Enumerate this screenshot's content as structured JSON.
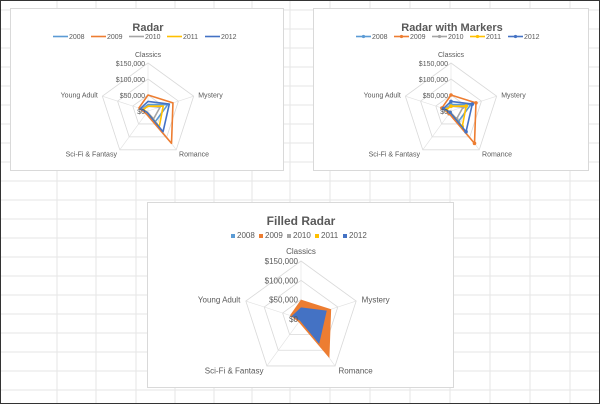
{
  "colors": {
    "2008": "#5b9bd5",
    "2009": "#ed7d31",
    "2010": "#a5a5a5",
    "2011": "#ffc000",
    "2012": "#4472c4"
  },
  "chart_data": [
    {
      "type": "radar",
      "title": "Radar",
      "style": "line",
      "categories": [
        "Classics",
        "Mystery",
        "Romance",
        "Sci-Fi & Fantasy",
        "Young Adult"
      ],
      "tick_labels": [
        "$0",
        "$50,000",
        "$100,000",
        "$150,000"
      ],
      "ylim": [
        0,
        150000
      ],
      "legend": "top",
      "series": [
        {
          "name": "2008",
          "values": [
            20000,
            65000,
            40000,
            10000,
            20000
          ]
        },
        {
          "name": "2009",
          "values": [
            50000,
            82000,
            125000,
            10000,
            30000
          ]
        },
        {
          "name": "2010",
          "values": [
            15000,
            40000,
            30000,
            5000,
            20000
          ]
        },
        {
          "name": "2011",
          "values": [
            15000,
            50000,
            60000,
            5000,
            15000
          ]
        },
        {
          "name": "2012",
          "values": [
            30000,
            70000,
            80000,
            5000,
            25000
          ]
        }
      ]
    },
    {
      "type": "radar",
      "title": "Radar with Markers",
      "style": "markers",
      "categories": [
        "Classics",
        "Mystery",
        "Romance",
        "Sci-Fi & Fantasy",
        "Young Adult"
      ],
      "tick_labels": [
        "$0",
        "$50,000",
        "$100,000",
        "$150,000"
      ],
      "ylim": [
        0,
        150000
      ],
      "legend": "top",
      "series": [
        {
          "name": "2008",
          "values": [
            20000,
            65000,
            40000,
            10000,
            20000
          ]
        },
        {
          "name": "2009",
          "values": [
            50000,
            82000,
            125000,
            10000,
            30000
          ]
        },
        {
          "name": "2010",
          "values": [
            15000,
            40000,
            30000,
            5000,
            20000
          ]
        },
        {
          "name": "2011",
          "values": [
            15000,
            50000,
            60000,
            5000,
            15000
          ]
        },
        {
          "name": "2012",
          "values": [
            30000,
            70000,
            80000,
            5000,
            25000
          ]
        }
      ]
    },
    {
      "type": "radar",
      "title": "Filled Radar",
      "style": "filled",
      "categories": [
        "Classics",
        "Mystery",
        "Romance",
        "Sci-Fi & Fantasy",
        "Young Adult"
      ],
      "tick_labels": [
        "$0",
        "$50,000",
        "$100,000",
        "$150,000"
      ],
      "ylim": [
        0,
        150000
      ],
      "legend": "top",
      "series": [
        {
          "name": "2008",
          "values": [
            20000,
            65000,
            40000,
            10000,
            20000
          ]
        },
        {
          "name": "2009",
          "values": [
            50000,
            82000,
            125000,
            10000,
            30000
          ]
        },
        {
          "name": "2010",
          "values": [
            15000,
            40000,
            30000,
            5000,
            20000
          ]
        },
        {
          "name": "2011",
          "values": [
            15000,
            50000,
            60000,
            5000,
            15000
          ]
        },
        {
          "name": "2012",
          "values": [
            30000,
            70000,
            80000,
            5000,
            25000
          ]
        }
      ]
    }
  ]
}
